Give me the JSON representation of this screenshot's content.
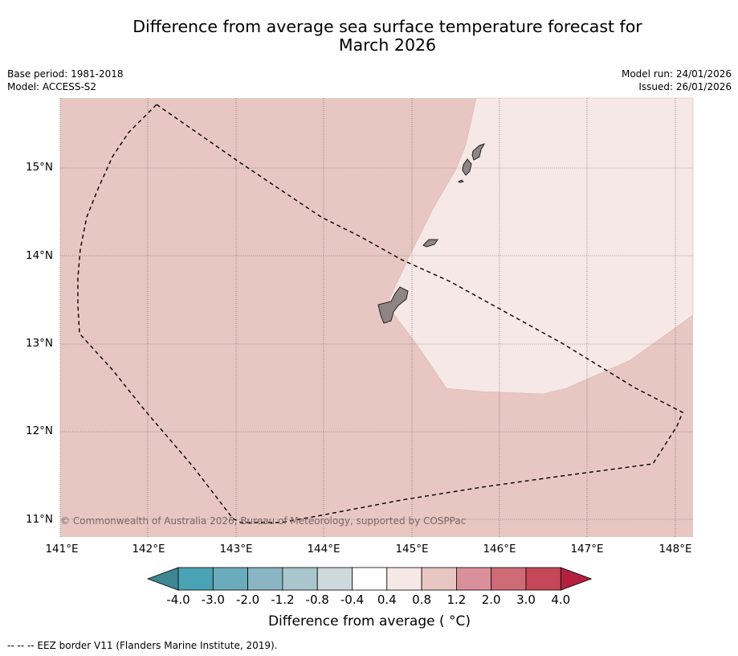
{
  "title": {
    "line1": "Difference from average sea surface temperature forecast for",
    "line2": "March 2026"
  },
  "meta": {
    "base_period": "Base period: 1981-2018",
    "model": "Model: ACCESS-S2",
    "model_run": "Model run: 24/01/2026",
    "issued": "Issued: 26/01/2026"
  },
  "map": {
    "lat_labels": [
      "15°N",
      "14°N",
      "13°N",
      "12°N",
      "11°N"
    ],
    "lon_labels": [
      "141°E",
      "142°E",
      "143°E",
      "144°E",
      "145°E",
      "146°E",
      "147°E",
      "148°E"
    ],
    "copyright": "© Commonwealth of Australia 2026, Bureau of Meteorology, supported by COSPPac",
    "colors": {
      "anomaly_0_4_to_0_8": "#f5e8e6",
      "anomaly_0_8_to_1_2": "#e8c7c2",
      "land": "#8f8585"
    }
  },
  "colorbar": {
    "ticks": [
      "-4.0",
      "-3.0",
      "-2.0",
      "-1.2",
      "-0.8",
      "-0.4",
      "0.4",
      "0.8",
      "1.2",
      "2.0",
      "3.0",
      "4.0"
    ],
    "colors": [
      "#3f8792",
      "#4aa3b5",
      "#6aacbb",
      "#8ab5c2",
      "#a8c6cb",
      "#cdd9dd",
      "#ffffff",
      "#f5e8e6",
      "#e8c7c2",
      "#d9909a",
      "#cf6b76",
      "#c44858",
      "#b52040"
    ],
    "label": "Difference from average ( °C)"
  },
  "legend_note": "--  --  -- EEZ border V11 (Flanders Marine Institute, 2019)."
}
